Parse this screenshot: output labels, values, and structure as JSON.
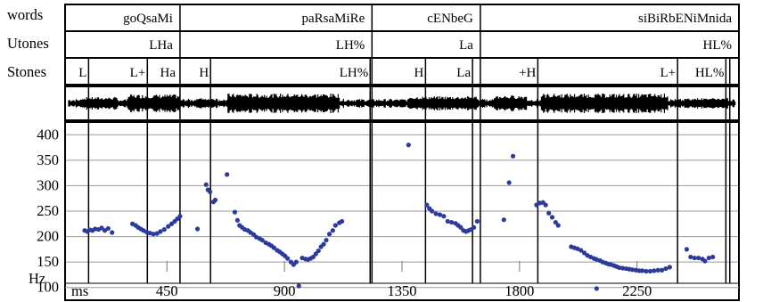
{
  "tiers": {
    "words": "words",
    "utones": "Utones",
    "stones": "Stones"
  },
  "words_labels": [
    "goQsaMi",
    "paRsaMiRe",
    "cENbeG",
    "siBiRbENiMnida"
  ],
  "utones_labels": [
    "LHa",
    "LH%",
    "La",
    "HL%"
  ],
  "stones_labels": [
    "L",
    "L+",
    "Ha",
    "H",
    "LH%",
    "H",
    "La",
    "+H",
    "L+",
    "HL%"
  ],
  "chart_data": {
    "type": "scatter",
    "title": "",
    "xlabel": "ms",
    "ylabel": "Hz",
    "xlim": [
      60,
      2640
    ],
    "ylim": [
      75,
      425
    ],
    "yticks": [
      100,
      150,
      200,
      250,
      300,
      350,
      400
    ],
    "xticks": [
      450,
      900,
      1350,
      1800,
      2250
    ],
    "grid": true,
    "color": "#2b3a9c",
    "word_boundaries": [
      60,
      500,
      1235,
      1650,
      2640
    ],
    "boundaries": [
      60,
      150,
      375,
      500,
      617,
      1228,
      1235,
      1440,
      1620,
      1650,
      1870,
      2405,
      2590,
      2605,
      2640
    ],
    "stones_times": [
      150,
      375,
      490,
      617,
      1228,
      1440,
      1620,
      1870,
      2405,
      2590
    ],
    "series": [
      {
        "values": [
          [
            135,
            212
          ],
          [
            145,
            210
          ],
          [
            155,
            213
          ],
          [
            165,
            212
          ],
          [
            175,
            215
          ],
          [
            188,
            214
          ],
          [
            200,
            217
          ],
          [
            212,
            212
          ],
          [
            225,
            216
          ],
          [
            240,
            208
          ],
          [
            318,
            225
          ],
          [
            330,
            222
          ],
          [
            340,
            218
          ],
          [
            350,
            215
          ],
          [
            360,
            212
          ],
          [
            372,
            209
          ],
          [
            385,
            207
          ],
          [
            398,
            205
          ],
          [
            412,
            206
          ],
          [
            425,
            210
          ],
          [
            440,
            214
          ],
          [
            455,
            220
          ],
          [
            468,
            225
          ],
          [
            480,
            230
          ],
          [
            490,
            235
          ],
          [
            500,
            240
          ],
          [
            567,
            215
          ],
          [
            600,
            302
          ],
          [
            607,
            292
          ],
          [
            615,
            288
          ],
          [
            628,
            268
          ],
          [
            635,
            272
          ],
          [
            680,
            322
          ],
          [
            710,
            248
          ],
          [
            720,
            232
          ],
          [
            728,
            222
          ],
          [
            738,
            218
          ],
          [
            748,
            214
          ],
          [
            760,
            212
          ],
          [
            770,
            208
          ],
          [
            782,
            204
          ],
          [
            792,
            199
          ],
          [
            805,
            196
          ],
          [
            815,
            193
          ],
          [
            828,
            188
          ],
          [
            840,
            185
          ],
          [
            850,
            182
          ],
          [
            860,
            178
          ],
          [
            872,
            173
          ],
          [
            882,
            170
          ],
          [
            892,
            166
          ],
          [
            902,
            162
          ],
          [
            912,
            157
          ],
          [
            925,
            150
          ],
          [
            935,
            145
          ],
          [
            945,
            150
          ],
          [
            955,
            103
          ],
          [
            968,
            158
          ],
          [
            980,
            156
          ],
          [
            990,
            155
          ],
          [
            1000,
            157
          ],
          [
            1010,
            160
          ],
          [
            1020,
            166
          ],
          [
            1030,
            172
          ],
          [
            1040,
            180
          ],
          [
            1050,
            185
          ],
          [
            1060,
            193
          ],
          [
            1072,
            205
          ],
          [
            1085,
            212
          ],
          [
            1095,
            222
          ],
          [
            1110,
            227
          ],
          [
            1120,
            230
          ],
          [
            1375,
            380
          ],
          [
            1445,
            262
          ],
          [
            1455,
            255
          ],
          [
            1465,
            250
          ],
          [
            1480,
            245
          ],
          [
            1495,
            243
          ],
          [
            1510,
            240
          ],
          [
            1525,
            230
          ],
          [
            1540,
            228
          ],
          [
            1555,
            226
          ],
          [
            1565,
            222
          ],
          [
            1575,
            218
          ],
          [
            1585,
            212
          ],
          [
            1595,
            210
          ],
          [
            1605,
            212
          ],
          [
            1615,
            214
          ],
          [
            1625,
            218
          ],
          [
            1638,
            230
          ],
          [
            1740,
            233
          ],
          [
            1760,
            306
          ],
          [
            1775,
            358
          ],
          [
            1865,
            262
          ],
          [
            1878,
            266
          ],
          [
            1890,
            267
          ],
          [
            1900,
            262
          ],
          [
            1912,
            246
          ],
          [
            1925,
            238
          ],
          [
            1938,
            228
          ],
          [
            1948,
            222
          ],
          [
            1998,
            180
          ],
          [
            2010,
            178
          ],
          [
            2022,
            176
          ],
          [
            2035,
            173
          ],
          [
            2048,
            168
          ],
          [
            2060,
            163
          ],
          [
            2072,
            160
          ],
          [
            2085,
            157
          ],
          [
            2095,
            155
          ],
          [
            2108,
            153
          ],
          [
            2118,
            150
          ],
          [
            2130,
            148
          ],
          [
            2140,
            146
          ],
          [
            2150,
            145
          ],
          [
            2162,
            143
          ],
          [
            2172,
            141
          ],
          [
            2182,
            139
          ],
          [
            2195,
            138
          ],
          [
            2208,
            137
          ],
          [
            2220,
            136
          ],
          [
            2232,
            135
          ],
          [
            2245,
            134
          ],
          [
            2258,
            133
          ],
          [
            2270,
            133
          ],
          [
            2285,
            132
          ],
          [
            2300,
            132
          ],
          [
            2315,
            133
          ],
          [
            2330,
            134
          ],
          [
            2345,
            134
          ],
          [
            2360,
            137
          ],
          [
            2375,
            140
          ],
          [
            2095,
            98
          ],
          [
            2440,
            175
          ],
          [
            2455,
            160
          ],
          [
            2470,
            158
          ],
          [
            2485,
            158
          ],
          [
            2500,
            156
          ],
          [
            2510,
            152
          ],
          [
            2525,
            158
          ],
          [
            2540,
            160
          ]
        ]
      }
    ]
  }
}
